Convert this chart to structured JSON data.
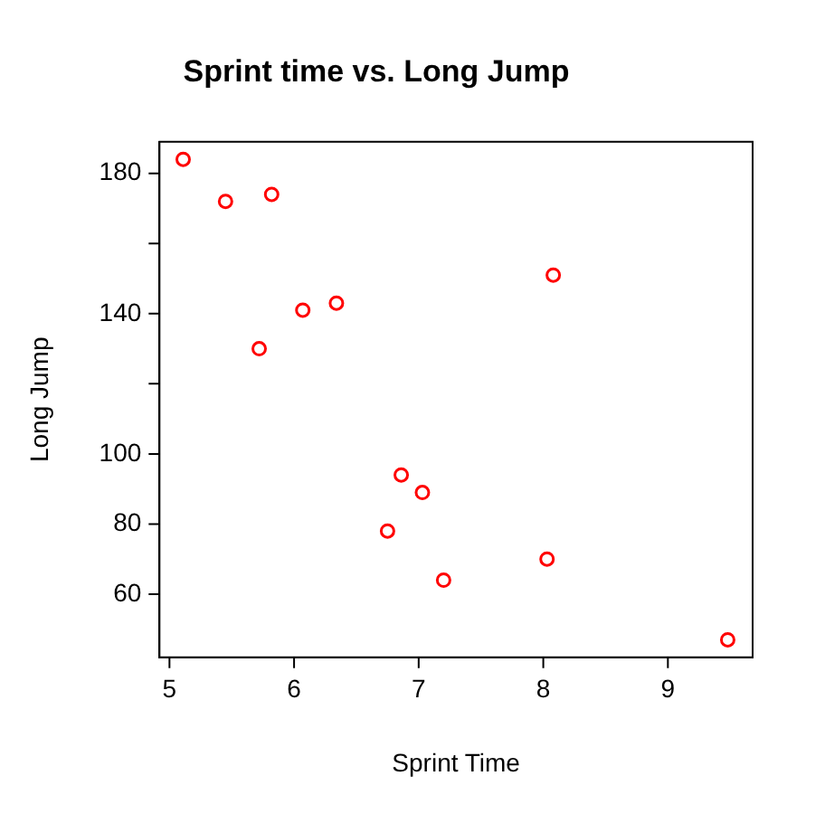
{
  "chart_data": {
    "type": "scatter",
    "title": "Sprint time vs. Long Jump",
    "xlabel": "Sprint Time",
    "ylabel": "Long Jump",
    "x": [
      5.11,
      5.45,
      5.82,
      5.72,
      6.07,
      6.34,
      8.08,
      6.86,
      7.03,
      6.75,
      7.2,
      8.03,
      9.48
    ],
    "series": [
      {
        "color": "#ff0000",
        "values": [
          184,
          172,
          174,
          130,
          141,
          143,
          151,
          94,
          89,
          78,
          64,
          70,
          47
        ]
      }
    ],
    "xlim": [
      4.92,
      9.68
    ],
    "ylim": [
      42,
      189
    ],
    "xticks": [
      5,
      6,
      7,
      8,
      9
    ],
    "yticks": [
      60,
      80,
      100,
      {
        "value": 120,
        "label": null
      },
      140,
      {
        "value": 160,
        "label": null
      },
      180
    ],
    "marker": "circle",
    "grid": false,
    "legend": false
  }
}
